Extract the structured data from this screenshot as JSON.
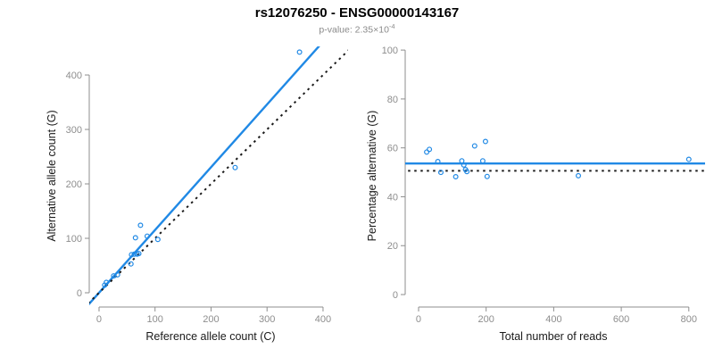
{
  "header": {
    "title": "rs12076250 - ENSG00000143167",
    "pvalue_label": "p-value: ",
    "pvalue_base": "2.35×10",
    "pvalue_exponent": "-4"
  },
  "colors": {
    "accent_blue": "#2089e5",
    "dotted_black": "#1a1a1a",
    "axis_gray": "#8e8e8e",
    "tick_label_gray": "#8e8e8e",
    "label_black": "#1a1a1a",
    "subtitle_gray": "#8a8a8a"
  },
  "chart_data": [
    {
      "type": "scatter",
      "name": "allele-count-scatter",
      "xlabel": "Reference allele count (C)",
      "ylabel": "Alternative allele count (G)",
      "xticks": [
        0,
        100,
        200,
        300,
        400
      ],
      "yticks": [
        0,
        100,
        200,
        300,
        400
      ],
      "xlim": [
        -17.5,
        444.7
      ],
      "ylim": [
        -26.2,
        452.5
      ],
      "grid": false,
      "legend": null,
      "points": [
        [
          10,
          14
        ],
        [
          13,
          19
        ],
        [
          26,
          31
        ],
        [
          33,
          33
        ],
        [
          57,
          53
        ],
        [
          58,
          70
        ],
        [
          63,
          71
        ],
        [
          65,
          101
        ],
        [
          68,
          71
        ],
        [
          71,
          72
        ],
        [
          74,
          124
        ],
        [
          86,
          104
        ],
        [
          105,
          98
        ],
        [
          243,
          230
        ],
        [
          358,
          442
        ]
      ],
      "lines": [
        {
          "name": "fit-line",
          "style": "solid",
          "color": "accent_blue",
          "slope": 1.153,
          "intercept": 0,
          "width": 2.4
        },
        {
          "name": "identity-line",
          "style": "dotted",
          "color": "dotted_black",
          "slope": 1,
          "intercept": 0,
          "width": 2
        }
      ]
    },
    {
      "type": "scatter",
      "name": "percentage-scatter",
      "xlabel": "Total number of reads",
      "ylabel": "Percentage alternative (G)",
      "xticks": [
        0,
        200,
        400,
        600,
        800
      ],
      "yticks": [
        0,
        20,
        40,
        60,
        80,
        100
      ],
      "xlim": [
        -39.6,
        848.1
      ],
      "ylim": [
        -5.1,
        101.5
      ],
      "grid": false,
      "legend": null,
      "points": [
        [
          24,
          58.3
        ],
        [
          32,
          59.4
        ],
        [
          57,
          54.4
        ],
        [
          66,
          50.0
        ],
        [
          110,
          48.2
        ],
        [
          128,
          54.7
        ],
        [
          134,
          53.0
        ],
        [
          139,
          51.1
        ],
        [
          143,
          50.3
        ],
        [
          166,
          60.8
        ],
        [
          190,
          54.7
        ],
        [
          198,
          62.6
        ],
        [
          203,
          48.3
        ],
        [
          473,
          48.6
        ],
        [
          800,
          55.3
        ]
      ],
      "lines": [
        {
          "name": "mean-line",
          "style": "solid",
          "color": "accent_blue",
          "slope": 0,
          "intercept": 53.6,
          "width": 2.4
        },
        {
          "name": "expected-line",
          "style": "dotted",
          "color": "dotted_black",
          "slope": 0,
          "intercept": 50.6,
          "width": 2
        }
      ]
    }
  ]
}
